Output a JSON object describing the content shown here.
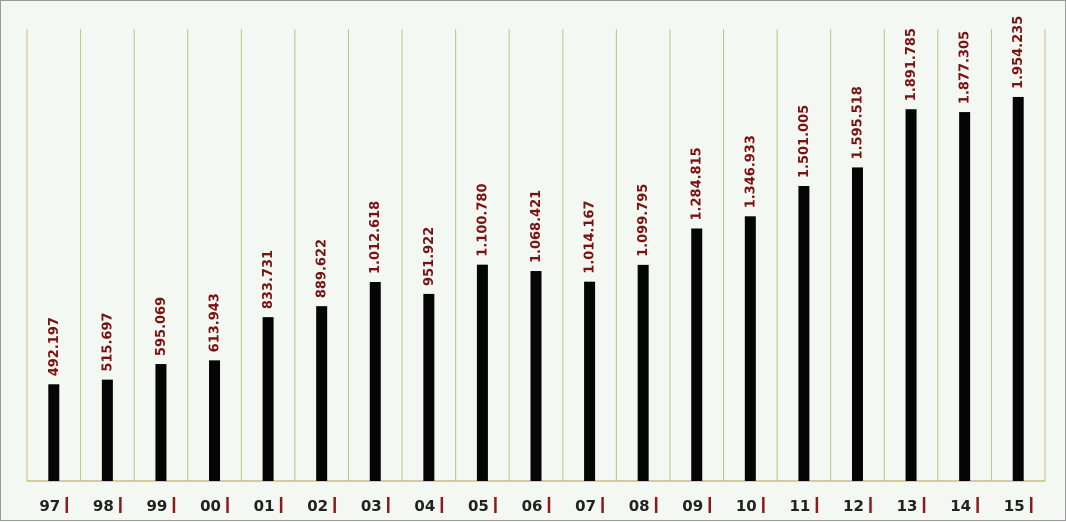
{
  "chart_data": {
    "type": "bar",
    "title": "",
    "xlabel": "",
    "ylabel": "",
    "categories": [
      "97",
      "98",
      "99",
      "00",
      "01",
      "02",
      "03",
      "04",
      "05",
      "06",
      "07",
      "08",
      "09",
      "10",
      "11",
      "12",
      "13",
      "14",
      "15"
    ],
    "values": [
      492197,
      515697,
      595069,
      613943,
      833731,
      889622,
      1012618,
      951922,
      1100780,
      1068421,
      1014167,
      1099795,
      1284815,
      1346933,
      1501005,
      1595518,
      1891785,
      1877305,
      1954235
    ],
    "value_labels": [
      "492.197",
      "515.697",
      "595.069",
      "613.943",
      "833.731",
      "889.622",
      "1.012.618",
      "951.922",
      "1.100.780",
      "1.068.421",
      "1.014.167",
      "1.099.795",
      "1.284.815",
      "1.346.933",
      "1.501.005",
      "1.595.518",
      "1.891.785",
      "1.877.305",
      "1.954.235"
    ],
    "ylim": [
      0,
      2300000
    ],
    "grid": "vertical",
    "legend": "none",
    "colors": {
      "bar": "#050505",
      "grid": "#c8bf7e",
      "baseline": "#c8bf7e",
      "value_label": "#7a1212",
      "tick_mark": "#8b1a1a",
      "category_label": "#222222",
      "background": "#f3f8f3"
    }
  }
}
